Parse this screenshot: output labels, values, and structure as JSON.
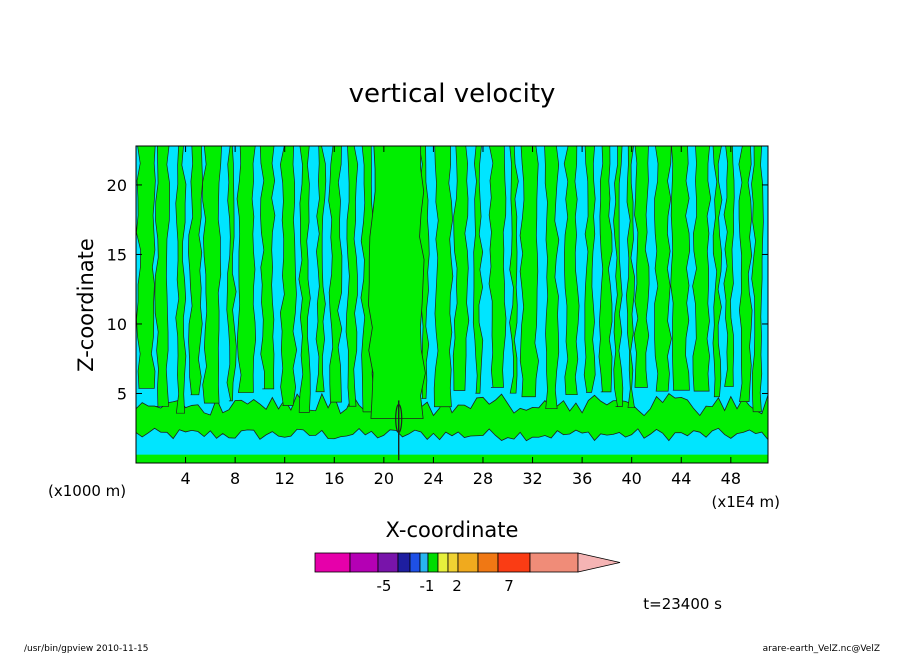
{
  "chart_data": {
    "type": "heatmap",
    "title": "vertical velocity",
    "xlabel": "X-coordinate",
    "ylabel": "Z-coordinate",
    "x_unit_left": "(x1000 m)",
    "x_unit_right": "(x1E4 m)",
    "x_ticks": [
      "4",
      "8",
      "12",
      "16",
      "20",
      "24",
      "28",
      "32",
      "36",
      "40",
      "44",
      "48"
    ],
    "x_tick_values": [
      4,
      8,
      12,
      16,
      20,
      24,
      28,
      32,
      36,
      40,
      44,
      48
    ],
    "y_ticks": [
      "5",
      "10",
      "15",
      "20"
    ],
    "y_tick_values": [
      5,
      10,
      15,
      20
    ],
    "xlim": [
      0,
      51
    ],
    "ylim": [
      0,
      22.8
    ],
    "colorbar": {
      "colors": [
        "#e600aa",
        "#b400b4",
        "#7814aa",
        "#1e1ea0",
        "#1e50e6",
        "#28b4f0",
        "#00dc00",
        "#e6f03c",
        "#f0d232",
        "#f0aa1e",
        "#f07814",
        "#fa3c14",
        "#f08c78",
        "#f5b4b4"
      ],
      "tick_labels": [
        "-5",
        "-1",
        "2",
        "7"
      ]
    },
    "field_colors": {
      "negative": "#00e5ff",
      "positive": "#00ee00",
      "contour": "#202020"
    },
    "time_label": "t=23400 s",
    "footer_left": "/usr/bin/gpview   2010-11-15",
    "footer_right": "arare-earth_VelZ.nc@VelZ"
  }
}
